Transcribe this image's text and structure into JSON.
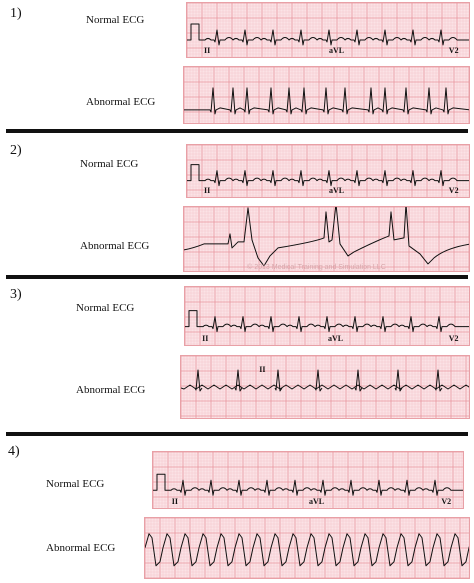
{
  "colors": {
    "grid_bg": "#fbe3e6",
    "grid_minor": "#f4c2c8",
    "grid_major": "#e8959e",
    "trace": "#111111",
    "separator": "#111111"
  },
  "cases": [
    {
      "number": "1)",
      "normal_label": "Normal ECG",
      "abnormal_label": "Abnormal ECG",
      "normal_leads": [
        "II",
        "aVL",
        "V2"
      ],
      "abnormal_leads": [],
      "watermark": ""
    },
    {
      "number": "2)",
      "normal_label": "Normal ECG",
      "abnormal_label": "Abnormal ECG",
      "normal_leads": [
        "II",
        "aVL",
        "V2"
      ],
      "abnormal_leads": [],
      "watermark": "© 2013 Medical Training and Simulation LLC"
    },
    {
      "number": "3)",
      "normal_label": "Normal ECG",
      "abnormal_label": "Abnormal ECG",
      "normal_leads": [
        "II",
        "aVL",
        "V2"
      ],
      "abnormal_leads": [
        "II"
      ],
      "watermark": ""
    },
    {
      "number": "4)",
      "normal_label": "Normal ECG",
      "abnormal_label": "Abnormal ECG",
      "normal_leads": [
        "II",
        "aVL",
        "V2"
      ],
      "abnormal_leads": [],
      "watermark": ""
    }
  ]
}
